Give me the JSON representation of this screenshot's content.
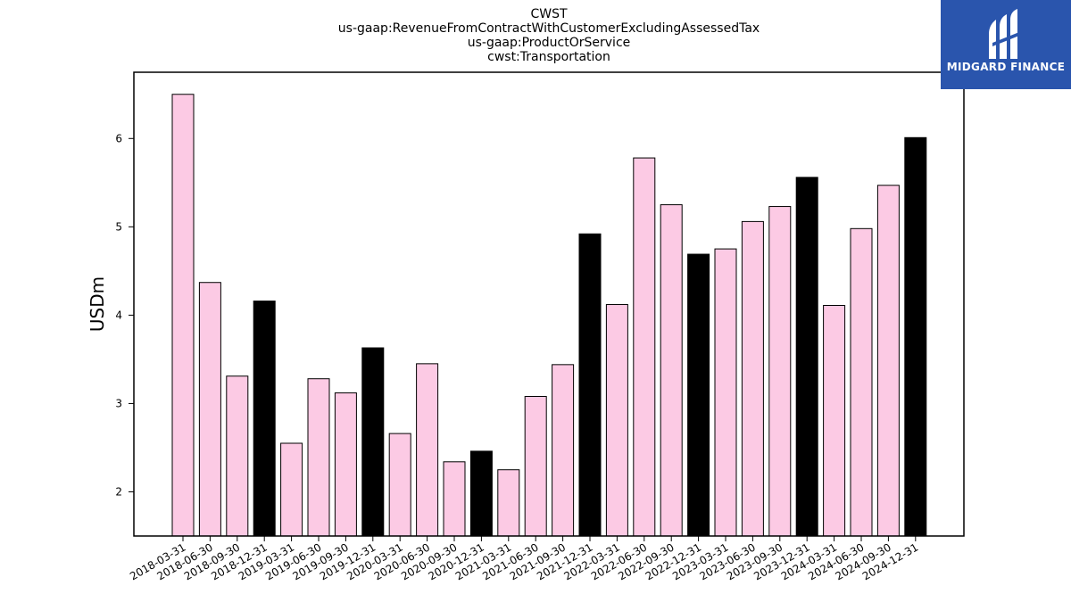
{
  "chart_data": {
    "type": "bar",
    "title": [
      "CWST",
      "us-gaap:RevenueFromContractWithCustomerExcludingAssessedTax",
      "us-gaap:ProductOrService",
      "cwst:Transportation"
    ],
    "xlabel": "",
    "ylabel": "USDm",
    "ylim": [
      1.5,
      6.75
    ],
    "yticks": [
      2,
      3,
      4,
      5,
      6
    ],
    "grid": false,
    "categories": [
      "2018-03-31",
      "2018-06-30",
      "2018-09-30",
      "2018-12-31",
      "2019-03-31",
      "2019-06-30",
      "2019-09-30",
      "2019-12-31",
      "2020-03-31",
      "2020-06-30",
      "2020-09-30",
      "2020-12-31",
      "2021-03-31",
      "2021-06-30",
      "2021-09-30",
      "2021-12-31",
      "2022-03-31",
      "2022-06-30",
      "2022-09-30",
      "2022-12-31",
      "2023-03-31",
      "2023-06-30",
      "2023-09-30",
      "2023-12-31",
      "2024-03-31",
      "2024-06-30",
      "2024-09-30",
      "2024-12-31"
    ],
    "values": [
      6.5,
      4.37,
      3.31,
      4.16,
      2.55,
      3.28,
      3.12,
      3.63,
      2.66,
      3.45,
      2.34,
      2.46,
      2.25,
      3.08,
      3.44,
      4.92,
      4.12,
      5.78,
      5.25,
      4.69,
      4.75,
      5.06,
      5.23,
      5.56,
      4.11,
      4.98,
      5.47,
      6.01
    ],
    "colors": {
      "quarter": "#fccae4",
      "year_end": "#000000",
      "edge": "#000000"
    }
  },
  "logo": {
    "text": "MIDGARD FINANCE",
    "bg": "#2a55ad"
  }
}
